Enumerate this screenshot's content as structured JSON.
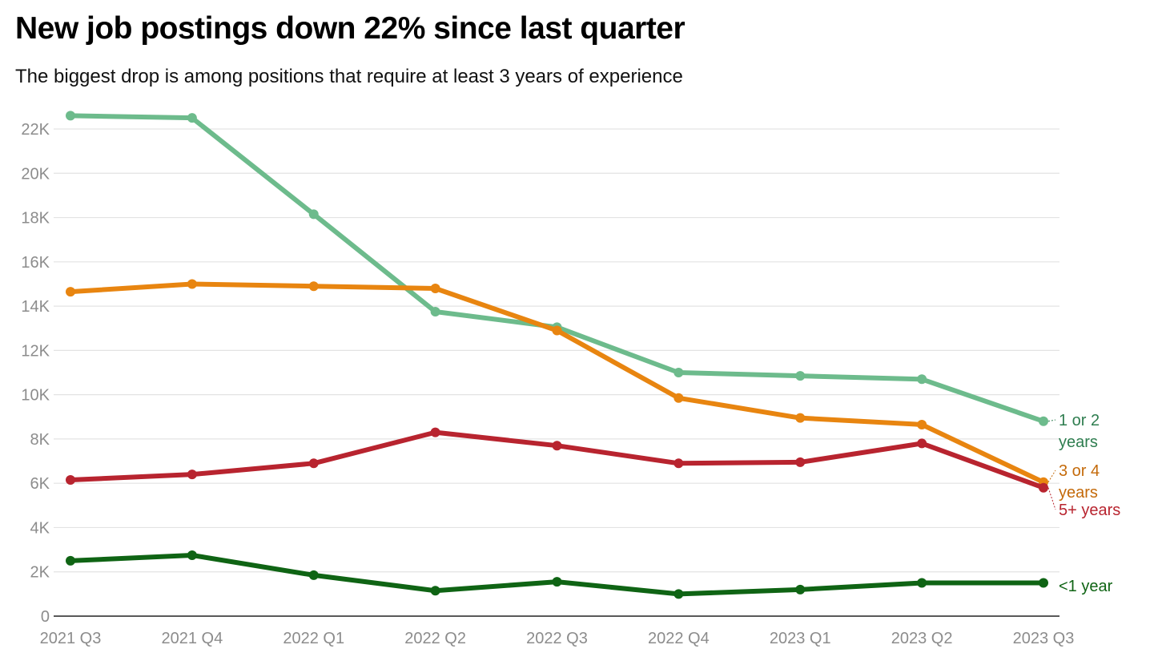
{
  "title": "New job postings down 22% since last quarter",
  "subtitle": "The biggest drop is among positions that require at least 3 years of experience",
  "chart_data": {
    "type": "line",
    "title": "New job postings down 22% since last quarter",
    "subtitle": "The biggest drop is among positions that require at least 3 years of experience",
    "xlabel": "",
    "ylabel": "",
    "categories": [
      "2021 Q3",
      "2021 Q4",
      "2022 Q1",
      "2022 Q2",
      "2022 Q3",
      "2022 Q4",
      "2023 Q1",
      "2023 Q2",
      "2023 Q3"
    ],
    "ylim": [
      0,
      22000
    ],
    "yticks": [
      0,
      2000,
      4000,
      6000,
      8000,
      10000,
      12000,
      14000,
      16000,
      18000,
      20000,
      22000
    ],
    "ytick_labels": [
      "0",
      "2K",
      "4K",
      "6K",
      "8K",
      "10K",
      "12K",
      "14K",
      "16K",
      "18K",
      "20K",
      "22K"
    ],
    "grid": true,
    "legend": "direct labels at right end of lines",
    "series": [
      {
        "name": "1 or 2 years",
        "label_lines": [
          "1 or 2",
          "years"
        ],
        "color": "#6dbb8c",
        "label_color": "#2e7d4f",
        "values": [
          22600,
          22500,
          18150,
          13750,
          13050,
          11000,
          10850,
          10700,
          8800
        ]
      },
      {
        "name": "3 or 4 years",
        "label_lines": [
          "3 or 4",
          "years"
        ],
        "color": "#e88510",
        "label_color": "#c46a0a",
        "values": [
          14650,
          15000,
          14900,
          14800,
          12900,
          9850,
          8950,
          8650,
          6050
        ]
      },
      {
        "name": "5+ years",
        "label_lines": [
          "5+ years"
        ],
        "color": "#b8242f",
        "label_color": "#b8242f",
        "values": [
          6150,
          6400,
          6900,
          8300,
          7700,
          6900,
          6950,
          7800,
          5800
        ]
      },
      {
        "name": "<1 year",
        "label_lines": [
          "<1 year"
        ],
        "color": "#0f6414",
        "label_color": "#0f6414",
        "values": [
          2500,
          2750,
          1850,
          1150,
          1550,
          1000,
          1200,
          1500,
          1500
        ]
      }
    ]
  }
}
